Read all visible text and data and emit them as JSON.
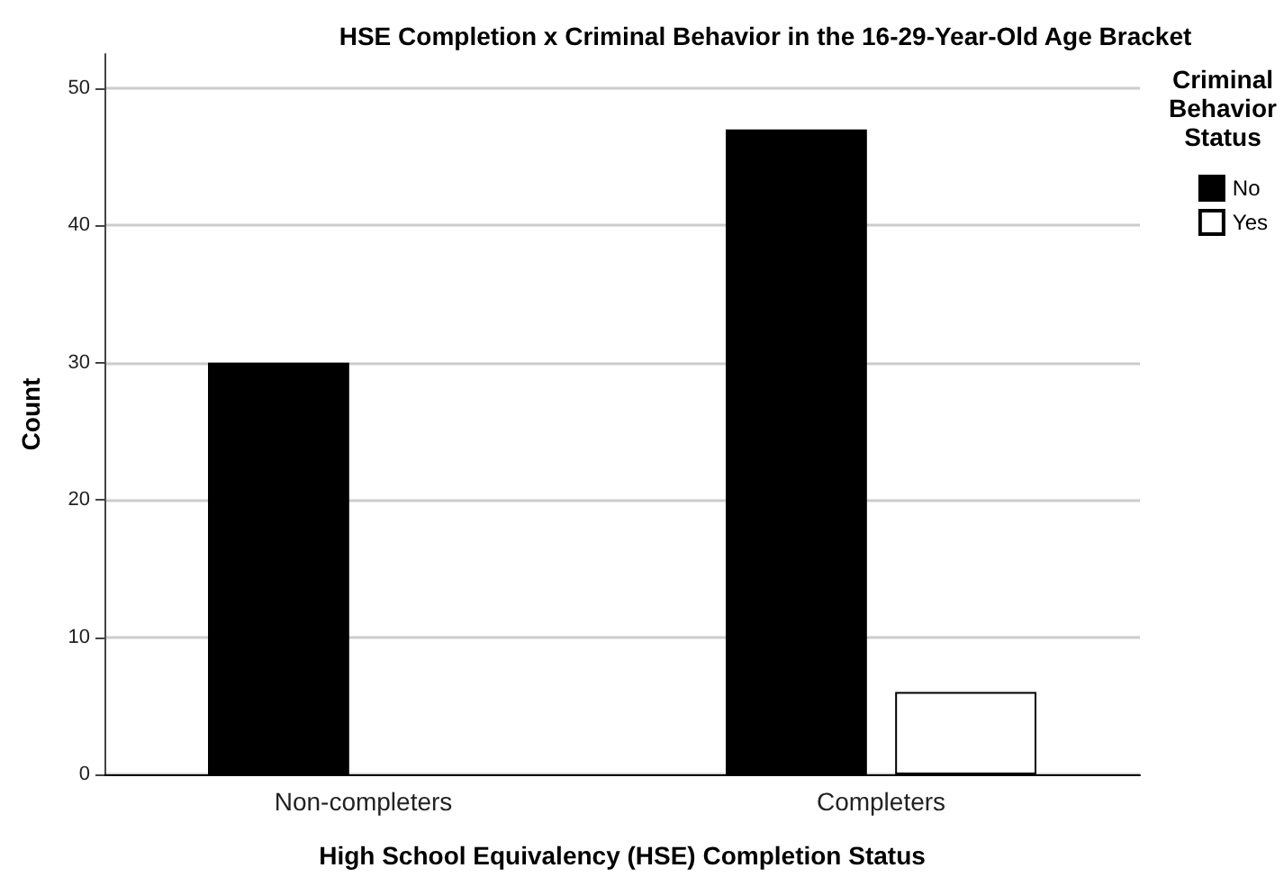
{
  "chart_data": {
    "type": "bar",
    "title": "HSE Completion x Criminal Behavior in the 16-29-Year-Old Age Bracket",
    "xlabel": "High School Equivalency (HSE) Completion Status",
    "ylabel": "Count",
    "legend_title": "Criminal Behavior Status",
    "categories": [
      "Non-completers",
      "Completers"
    ],
    "series": [
      {
        "name": "No",
        "color": "#000000",
        "values": [
          30,
          47
        ]
      },
      {
        "name": "Yes",
        "color": "#ffffff",
        "values": [
          null,
          6
        ]
      }
    ],
    "ylim": [
      0,
      52.5
    ],
    "yticks": [
      0,
      10,
      20,
      30,
      40,
      50
    ],
    "grid": "y",
    "legend": "top right"
  }
}
